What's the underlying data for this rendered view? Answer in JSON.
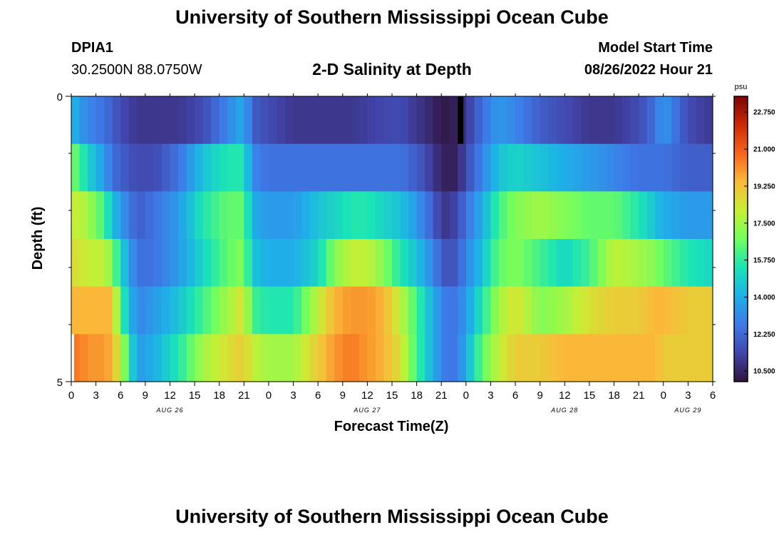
{
  "header": {
    "title": "University of Southern Mississippi Ocean Cube",
    "station_id": "DPIA1",
    "coords": "30.2500N  88.0750W",
    "chart_title": "2-D Salinity at Depth",
    "model_start_label": "Model Start Time",
    "model_start_value": "08/26/2022 Hour 21"
  },
  "footer": {
    "title": "University of Southern Mississippi Ocean Cube"
  },
  "chart_data": {
    "type": "heatmap",
    "title": "2-D Salinity at Depth",
    "xlabel": "Forecast Time(Z)",
    "ylabel": "Depth (ft)",
    "y_ticks": [
      "0",
      "5"
    ],
    "ylim": [
      0,
      5
    ],
    "x_hours_range": [
      0,
      78
    ],
    "x_ticks": [
      "0",
      "3",
      "6",
      "9",
      "12",
      "15",
      "18",
      "21",
      "0",
      "3",
      "6",
      "9",
      "12",
      "15",
      "18",
      "21",
      "0",
      "3",
      "6",
      "9",
      "12",
      "15",
      "18",
      "21",
      "0",
      "3",
      "6"
    ],
    "date_labels": [
      {
        "label": "AUG 26",
        "hour": 12
      },
      {
        "label": "AUG 27",
        "hour": 36
      },
      {
        "label": "AUG 28",
        "hour": 60
      },
      {
        "label": "AUG 29",
        "hour": 75
      }
    ],
    "colorbar": {
      "unit": "psu",
      "min": 10.0,
      "max": 23.5,
      "ticks": [
        "22.750",
        "21.000",
        "19.250",
        "17.500",
        "15.750",
        "14.000",
        "12.250",
        "10.500"
      ]
    },
    "layer_depths_ft": [
      0.0,
      1.0,
      2.0,
      3.0,
      4.0,
      5.0
    ],
    "keyframes_hours": [
      0,
      1,
      2,
      4,
      5,
      6,
      8,
      10,
      13,
      16,
      19,
      21,
      22,
      24,
      27,
      30,
      32,
      34,
      36,
      38,
      40,
      42,
      44,
      45,
      46,
      47,
      48,
      50,
      52,
      54,
      57,
      60,
      63,
      66,
      69,
      71,
      72,
      75,
      78
    ],
    "rows": [
      {
        "depth_ft": 0.0,
        "values": [
          14.5,
          13.5,
          13.0,
          12.5,
          12.0,
          11.5,
          11.0,
          11.0,
          11.0,
          11.5,
          13.0,
          14.0,
          12.0,
          11.5,
          11.0,
          11.0,
          11.0,
          11.0,
          11.2,
          11.4,
          11.5,
          11.0,
          10.5,
          10.2,
          10.2,
          10.5,
          11.0,
          12.5,
          13.5,
          13.0,
          12.0,
          11.5,
          11.0,
          11.0,
          11.5,
          12.5,
          13.5,
          11.5,
          11.0
        ]
      },
      {
        "depth_ft": 1.0,
        "values": [
          17.0,
          16.0,
          15.0,
          13.5,
          12.5,
          12.0,
          11.5,
          11.5,
          12.5,
          14.5,
          15.5,
          15.5,
          13.0,
          12.5,
          12.5,
          12.5,
          12.5,
          12.5,
          12.5,
          12.5,
          12.5,
          12.0,
          11.0,
          10.5,
          10.3,
          10.5,
          11.5,
          13.0,
          14.5,
          15.0,
          14.5,
          14.0,
          13.5,
          13.0,
          12.5,
          12.5,
          12.5,
          12.0,
          12.0
        ]
      },
      {
        "depth_ft": 2.0,
        "values": [
          18.0,
          18.0,
          17.5,
          16.0,
          14.5,
          13.5,
          12.0,
          12.5,
          13.5,
          15.5,
          16.5,
          16.5,
          14.0,
          13.5,
          13.5,
          14.5,
          15.0,
          15.5,
          15.5,
          15.0,
          14.5,
          13.5,
          12.0,
          11.0,
          11.0,
          11.5,
          12.5,
          14.0,
          16.0,
          17.0,
          17.5,
          17.0,
          16.5,
          16.5,
          15.5,
          14.5,
          14.0,
          13.5,
          13.5
        ]
      },
      {
        "depth_ft": 3.0,
        "values": [
          18.5,
          18.5,
          18.0,
          18.0,
          17.0,
          15.0,
          12.5,
          12.5,
          13.5,
          15.0,
          16.5,
          17.0,
          14.5,
          14.0,
          14.0,
          15.0,
          17.0,
          18.0,
          18.0,
          17.0,
          15.5,
          14.5,
          13.0,
          12.0,
          11.5,
          12.0,
          13.0,
          14.5,
          16.5,
          17.0,
          16.0,
          15.0,
          16.0,
          18.0,
          17.5,
          17.0,
          16.5,
          15.5,
          15.0
        ]
      },
      {
        "depth_ft": 4.0,
        "values": [
          19.5,
          19.5,
          19.5,
          19.5,
          19.5,
          16.0,
          13.0,
          13.5,
          14.5,
          16.0,
          17.5,
          18.5,
          16.0,
          15.5,
          15.5,
          18.0,
          19.5,
          20.0,
          20.0,
          19.5,
          18.0,
          16.0,
          14.0,
          13.0,
          12.5,
          12.8,
          13.5,
          15.5,
          17.5,
          18.5,
          17.0,
          17.5,
          18.5,
          19.0,
          19.0,
          19.5,
          19.5,
          19.0,
          19.0
        ]
      },
      {
        "depth_ft": 5.0,
        "values": [
          20.5,
          20.5,
          20.0,
          20.0,
          19.5,
          18.0,
          13.5,
          14.0,
          15.5,
          17.5,
          18.5,
          19.0,
          18.0,
          17.5,
          17.5,
          19.0,
          20.0,
          20.5,
          20.0,
          19.5,
          18.5,
          16.0,
          14.0,
          13.0,
          12.5,
          12.8,
          14.0,
          16.5,
          18.0,
          19.0,
          19.0,
          19.5,
          19.5,
          19.5,
          19.5,
          19.5,
          19.0,
          19.0,
          19.0
        ]
      }
    ],
    "dark_marker_hour": 47
  },
  "colors": {
    "background": "#ffffff",
    "text": "#000000"
  }
}
